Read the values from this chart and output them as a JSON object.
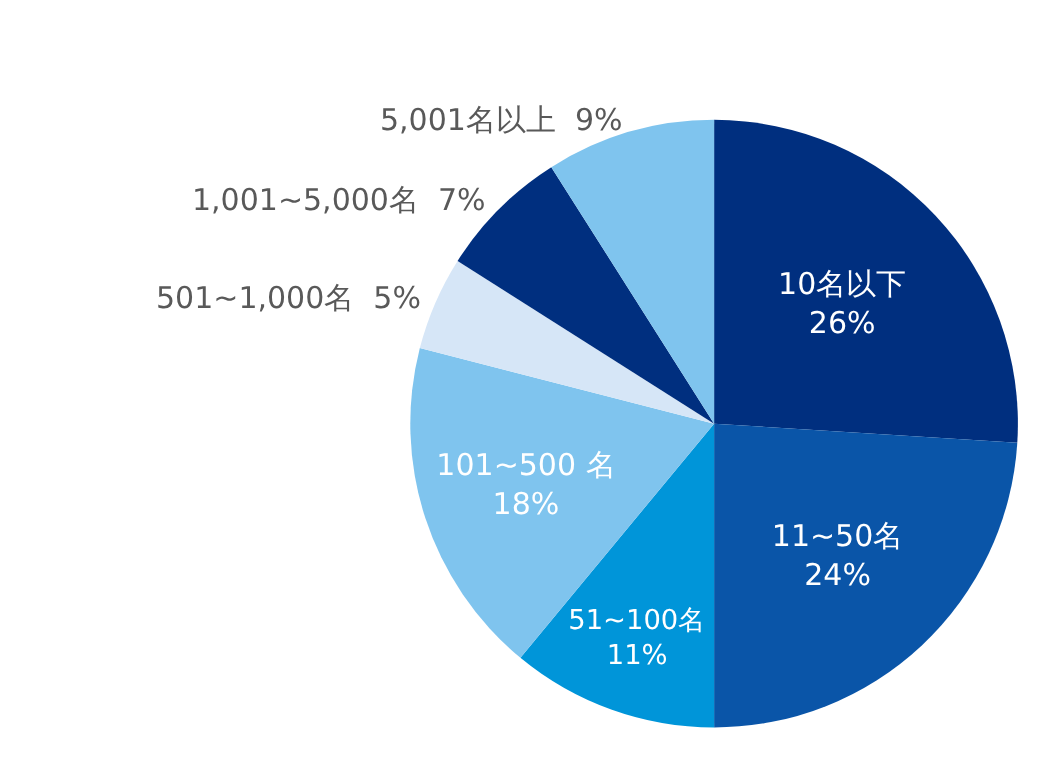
{
  "chart_data": {
    "type": "pie",
    "categories": [
      "10名以下",
      "11~50名",
      "51~100名",
      "101~500 名",
      "501~1,000名",
      "1,001~5,000名",
      "5,001名以上"
    ],
    "values": [
      26,
      24,
      11,
      18,
      5,
      7,
      9
    ],
    "value_labels": [
      "26%",
      "24%",
      "11%",
      "18%",
      "5%",
      "7%",
      "9%"
    ],
    "colors": [
      "#002f7f",
      "#0a55a8",
      "#0095d9",
      "#7fc4ee",
      "#d6e6f7",
      "#002f7f",
      "#7fc4ee"
    ],
    "legend": false
  }
}
